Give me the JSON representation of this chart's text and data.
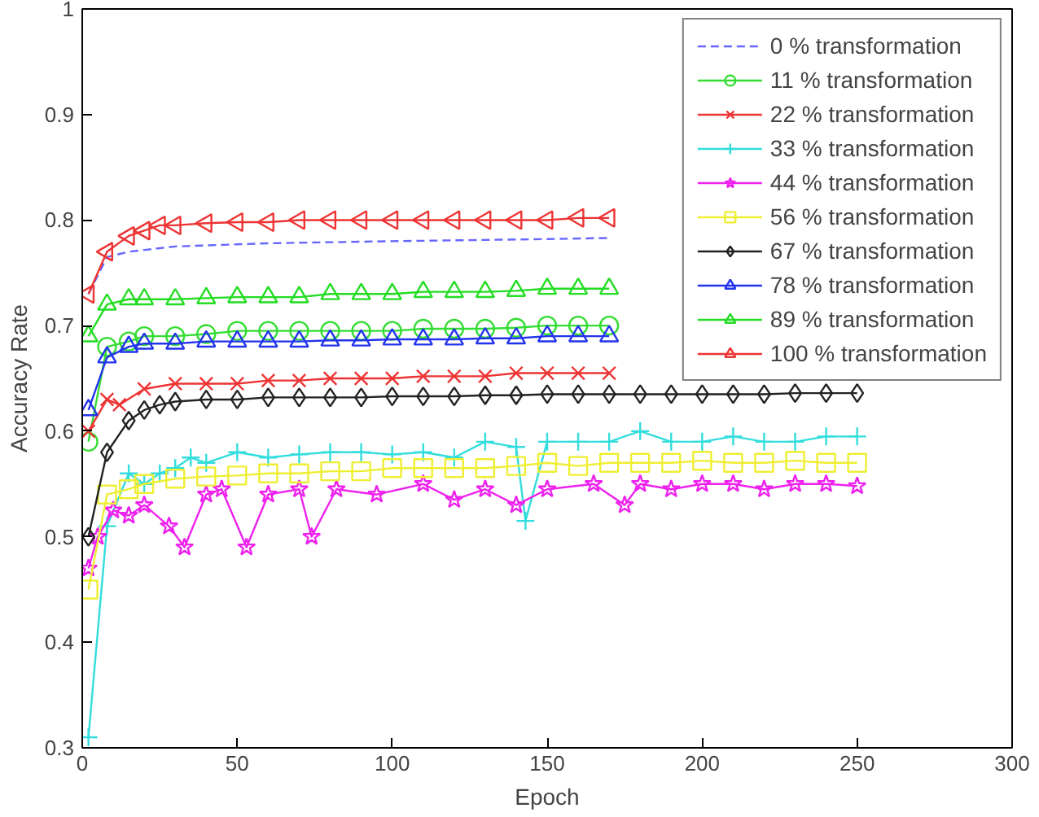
{
  "chart_data": {
    "type": "line",
    "xlabel": "Epoch",
    "ylabel": "Accuracy Rate",
    "xlim": [
      0,
      300
    ],
    "ylim": [
      0.3,
      1
    ],
    "xticks": [
      0,
      50,
      100,
      150,
      200,
      250,
      300
    ],
    "yticks": [
      0.3,
      0.4,
      0.5,
      0.6,
      0.7,
      0.8,
      0.9,
      1
    ],
    "grid": false,
    "legend": "top right",
    "series": [
      {
        "name": "0 % transformation",
        "color": "#6666ff",
        "line_style": "dashed",
        "marker": "none",
        "x": [
          2,
          8,
          15,
          30,
          60,
          100,
          150,
          170
        ],
        "values": [
          0.73,
          0.765,
          0.77,
          0.775,
          0.778,
          0.78,
          0.782,
          0.783
        ]
      },
      {
        "name": "11 % transformation",
        "color": "#33dd33",
        "marker": "circle",
        "x": [
          2,
          8,
          15,
          20,
          30,
          40,
          50,
          60,
          70,
          80,
          90,
          100,
          110,
          120,
          130,
          140,
          150,
          160,
          170
        ],
        "values": [
          0.59,
          0.68,
          0.685,
          0.69,
          0.69,
          0.692,
          0.695,
          0.695,
          0.695,
          0.695,
          0.695,
          0.695,
          0.697,
          0.697,
          0.697,
          0.698,
          0.7,
          0.7,
          0.7
        ]
      },
      {
        "name": "22 % transformation",
        "color": "#ee3333",
        "marker": "x",
        "x": [
          2,
          8,
          12,
          20,
          30,
          40,
          50,
          60,
          70,
          80,
          90,
          100,
          110,
          120,
          130,
          140,
          150,
          160,
          170
        ],
        "values": [
          0.6,
          0.63,
          0.625,
          0.64,
          0.645,
          0.645,
          0.645,
          0.648,
          0.648,
          0.65,
          0.65,
          0.65,
          0.652,
          0.652,
          0.652,
          0.655,
          0.655,
          0.655,
          0.655
        ]
      },
      {
        "name": "33 % transformation",
        "color": "#33dddd",
        "marker": "cross",
        "x": [
          2,
          8,
          15,
          20,
          25,
          30,
          35,
          40,
          50,
          60,
          70,
          80,
          90,
          100,
          110,
          120,
          130,
          140,
          143,
          150,
          160,
          170,
          180,
          190,
          200,
          210,
          220,
          230,
          240,
          250
        ],
        "values": [
          0.31,
          0.51,
          0.56,
          0.55,
          0.56,
          0.565,
          0.575,
          0.57,
          0.58,
          0.575,
          0.578,
          0.58,
          0.58,
          0.578,
          0.58,
          0.575,
          0.59,
          0.585,
          0.515,
          0.59,
          0.59,
          0.59,
          0.6,
          0.59,
          0.59,
          0.595,
          0.59,
          0.59,
          0.595,
          0.595
        ]
      },
      {
        "name": "44 % transformation",
        "color": "#ee22ee",
        "marker": "star",
        "x": [
          2,
          5,
          10,
          15,
          20,
          28,
          33,
          40,
          45,
          53,
          60,
          70,
          74,
          82,
          95,
          110,
          120,
          130,
          140,
          150,
          165,
          175,
          180,
          190,
          200,
          210,
          220,
          230,
          240,
          250
        ],
        "values": [
          0.47,
          0.5,
          0.525,
          0.52,
          0.53,
          0.51,
          0.49,
          0.54,
          0.545,
          0.49,
          0.54,
          0.545,
          0.5,
          0.545,
          0.54,
          0.55,
          0.535,
          0.545,
          0.53,
          0.545,
          0.55,
          0.53,
          0.55,
          0.545,
          0.55,
          0.55,
          0.545,
          0.55,
          0.55,
          0.548
        ]
      },
      {
        "name": "56 % transformation",
        "color": "#eeee33",
        "marker": "square",
        "x": [
          2,
          8,
          15,
          20,
          30,
          40,
          50,
          60,
          70,
          80,
          90,
          100,
          110,
          120,
          130,
          140,
          150,
          160,
          170,
          180,
          190,
          200,
          210,
          220,
          230,
          240,
          250
        ],
        "values": [
          0.45,
          0.54,
          0.545,
          0.55,
          0.555,
          0.557,
          0.558,
          0.56,
          0.56,
          0.562,
          0.562,
          0.565,
          0.565,
          0.565,
          0.565,
          0.567,
          0.57,
          0.567,
          0.57,
          0.57,
          0.57,
          0.572,
          0.57,
          0.57,
          0.572,
          0.57,
          0.57
        ]
      },
      {
        "name": "67 % transformation",
        "color": "#222222",
        "marker": "diamond",
        "x": [
          2,
          8,
          15,
          20,
          25,
          30,
          40,
          50,
          60,
          70,
          80,
          90,
          100,
          110,
          120,
          130,
          140,
          150,
          160,
          170,
          180,
          190,
          200,
          210,
          220,
          230,
          240,
          250
        ],
        "values": [
          0.5,
          0.58,
          0.61,
          0.62,
          0.625,
          0.628,
          0.63,
          0.63,
          0.632,
          0.632,
          0.632,
          0.632,
          0.633,
          0.633,
          0.633,
          0.634,
          0.634,
          0.635,
          0.635,
          0.635,
          0.635,
          0.635,
          0.635,
          0.635,
          0.635,
          0.636,
          0.636,
          0.636
        ]
      },
      {
        "name": "78 % transformation",
        "color": "#2233ee",
        "marker": "triangle",
        "x": [
          2,
          8,
          15,
          20,
          30,
          40,
          50,
          60,
          70,
          80,
          90,
          100,
          110,
          120,
          130,
          140,
          150,
          160,
          170
        ],
        "values": [
          0.62,
          0.67,
          0.68,
          0.683,
          0.683,
          0.685,
          0.685,
          0.685,
          0.685,
          0.686,
          0.686,
          0.687,
          0.687,
          0.687,
          0.688,
          0.688,
          0.69,
          0.69,
          0.69
        ]
      },
      {
        "name": "89 % transformation",
        "color": "#22dd22",
        "marker": "triangle",
        "x": [
          2,
          8,
          15,
          20,
          30,
          40,
          50,
          60,
          70,
          80,
          90,
          100,
          110,
          120,
          130,
          140,
          150,
          160,
          170
        ],
        "values": [
          0.69,
          0.72,
          0.725,
          0.725,
          0.725,
          0.726,
          0.727,
          0.727,
          0.727,
          0.73,
          0.73,
          0.73,
          0.732,
          0.732,
          0.732,
          0.733,
          0.735,
          0.735,
          0.735
        ]
      },
      {
        "name": "100 % transformation",
        "color": "#ee3333",
        "marker": "triangle_left",
        "x": [
          2,
          8,
          15,
          20,
          25,
          30,
          40,
          50,
          60,
          70,
          80,
          90,
          100,
          110,
          120,
          130,
          140,
          150,
          160,
          170
        ],
        "values": [
          0.73,
          0.77,
          0.785,
          0.79,
          0.795,
          0.795,
          0.797,
          0.798,
          0.798,
          0.8,
          0.8,
          0.8,
          0.8,
          0.8,
          0.8,
          0.8,
          0.8,
          0.8,
          0.802,
          0.802
        ]
      }
    ]
  }
}
